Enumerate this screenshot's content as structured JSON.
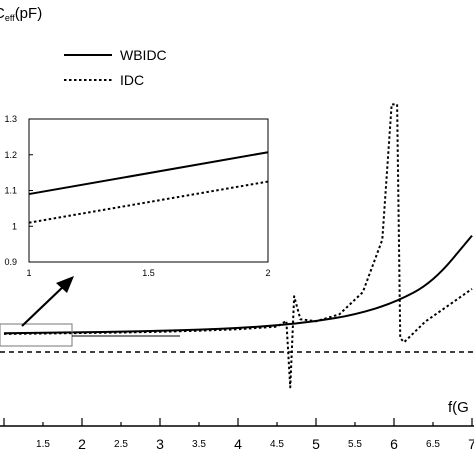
{
  "chart_data": [
    {
      "type": "line",
      "ylabel": "C",
      "ylabel_sub": "eff",
      "ylabel_unit": "(pF)",
      "xlabel": "f(G",
      "xlim": [
        1.0,
        7.0
      ],
      "x_ticks_major": [
        "2",
        "3",
        "4",
        "5",
        "6",
        "7"
      ],
      "x_ticks_minor": [
        "1.5",
        "2.5",
        "3.5",
        "4.5",
        "5.5",
        "6.5"
      ],
      "legend": {
        "placement": "top-left",
        "entries": [
          "WBIDC",
          "IDC"
        ]
      },
      "series": [
        {
          "name": "WBIDC",
          "style": "solid",
          "color": "#000000",
          "points": [
            [
              1.0,
              1.09
            ],
            [
              1.5,
              1.15
            ],
            [
              2.0,
              1.21
            ],
            [
              2.5,
              1.28
            ],
            [
              3.0,
              1.38
            ],
            [
              3.5,
              1.52
            ],
            [
              4.0,
              1.72
            ],
            [
              4.5,
              2.05
            ],
            [
              5.0,
              2.55
            ],
            [
              5.5,
              3.35
            ],
            [
              6.0,
              4.8
            ],
            [
              6.5,
              7.3
            ],
            [
              7.0,
              13.0
            ]
          ]
        },
        {
          "name": "IDC",
          "style": "dotted",
          "color": "#000000",
          "points": [
            [
              1.0,
              1.01
            ],
            [
              1.5,
              1.06
            ],
            [
              2.0,
              1.12
            ],
            [
              2.5,
              1.18
            ],
            [
              3.0,
              1.27
            ],
            [
              3.5,
              1.4
            ],
            [
              4.0,
              1.58
            ],
            [
              4.5,
              1.9
            ],
            [
              4.62,
              2.6
            ],
            [
              4.67,
              -5.5
            ],
            [
              4.72,
              5.6
            ],
            [
              4.8,
              2.8
            ],
            [
              5.0,
              2.55
            ],
            [
              5.3,
              3.4
            ],
            [
              5.6,
              6.1
            ],
            [
              5.85,
              12.5
            ],
            [
              5.97,
              29.0
            ],
            [
              6.04,
              29.0
            ],
            [
              6.08,
              0.5
            ],
            [
              6.13,
              0.0
            ],
            [
              6.4,
              2.5
            ],
            [
              6.7,
              4.5
            ],
            [
              7.0,
              6.5
            ]
          ]
        }
      ]
    },
    {
      "type": "line",
      "title": "",
      "xlim": [
        1,
        2
      ],
      "ylim": [
        0.9,
        1.3
      ],
      "x_ticks": [
        "1",
        "1.5",
        "2"
      ],
      "y_ticks": [
        "0.9",
        "1",
        "1.1",
        "1.2",
        "1.3"
      ],
      "series": [
        {
          "name": "WBIDC",
          "style": "solid",
          "points": [
            [
              1.0,
              1.09
            ],
            [
              2.0,
              1.207
            ]
          ]
        },
        {
          "name": "IDC",
          "style": "dotted",
          "points": [
            [
              1.0,
              1.01
            ],
            [
              2.0,
              1.125
            ]
          ]
        }
      ]
    }
  ]
}
